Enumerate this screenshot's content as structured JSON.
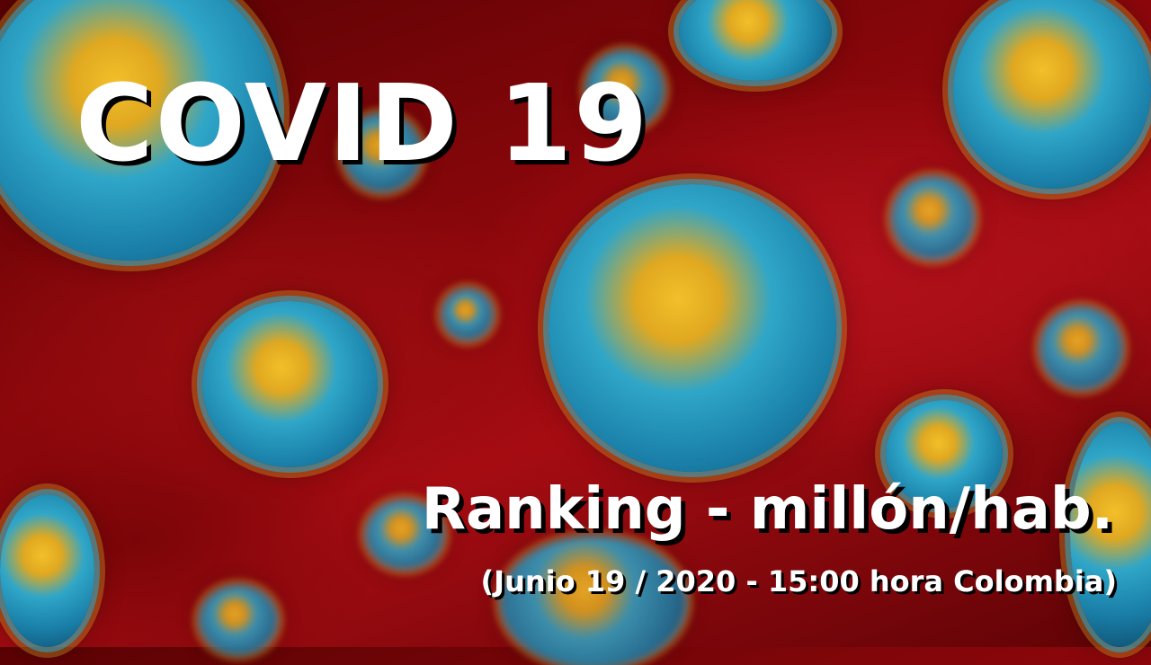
{
  "title": "COVID 19",
  "subtitle": "Ranking - millón/hab.",
  "date_line": "(Junio 19 / 2020 - 15:00 hora Colombia)",
  "colors": {
    "background": "#8c070b",
    "virus_body": "#2fa6c8",
    "virus_spikes": "#f2c02a",
    "text": "#ffffff"
  }
}
